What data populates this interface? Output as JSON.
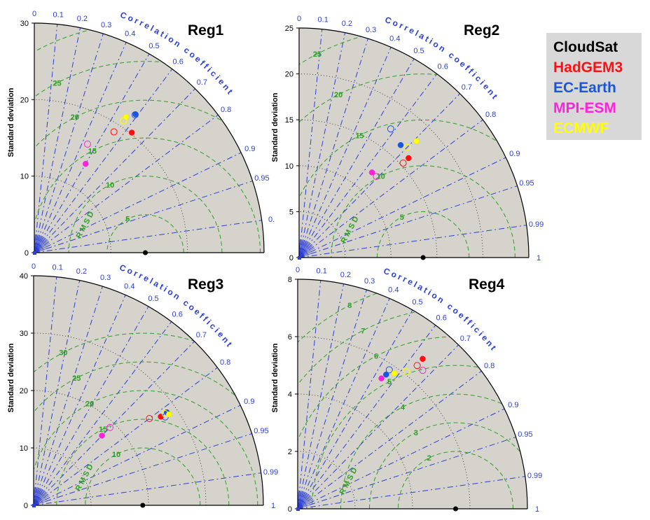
{
  "colors": {
    "fill": "#d6d2cc",
    "corr": "#2b3fd6",
    "rmsd": "#2aa024",
    "std_grid": "#333333",
    "title": "#000000",
    "reference": "#000000"
  },
  "legend": [
    {
      "name": "CloudSat",
      "color": "#000000"
    },
    {
      "name": "HadGEM3",
      "color": "#ff1010"
    },
    {
      "name": "EC-Earth",
      "color": "#1a55e0"
    },
    {
      "name": "MPI-ESM",
      "color": "#ff22dd"
    },
    {
      "name": "ECMWF",
      "color": "#ffff00"
    }
  ],
  "chart_data": [
    {
      "type": "scatter",
      "subtype": "taylor",
      "title": "Reg1",
      "ylabel": "Standard deviation",
      "corr_label": "Correlation coefficient",
      "rmsd_label": "RMSD",
      "std_max": 30,
      "std_ticks": [
        0,
        10,
        20,
        30
      ],
      "std_rings": [
        10,
        20,
        30
      ],
      "corr_ticks": [
        "0",
        "0.1",
        "0.2",
        "0.3",
        "0.4",
        "0.5",
        "0.6",
        "0.7",
        "0.8",
        "0.9",
        "0.95",
        "0."
      ],
      "rmsd_levels": [
        5,
        10,
        15,
        20,
        25,
        30
      ],
      "reference_std": 14.5,
      "points": [
        {
          "model": "HadGEM3",
          "kind": "filled",
          "std": 20.2,
          "corr": 0.63
        },
        {
          "model": "HadGEM3",
          "kind": "open",
          "std": 18.9,
          "corr": 0.55
        },
        {
          "model": "EC-Earth",
          "kind": "filled",
          "std": 22.4,
          "corr": 0.59
        },
        {
          "model": "EC-Earth",
          "kind": "open",
          "std": 22.3,
          "corr": 0.59
        },
        {
          "model": "MPI-ESM",
          "kind": "filled",
          "std": 13.4,
          "corr": 0.5
        },
        {
          "model": "MPI-ESM",
          "kind": "open",
          "std": 15.8,
          "corr": 0.44
        },
        {
          "model": "ECMWF",
          "kind": "filled",
          "std": 21.4,
          "corr": 0.56
        },
        {
          "model": "ECMWF",
          "kind": "open",
          "std": 20.8,
          "corr": 0.56
        }
      ]
    },
    {
      "type": "scatter",
      "subtype": "taylor",
      "title": "Reg2",
      "ylabel": "Standard deviation",
      "corr_label": "Correlation coefficient",
      "rmsd_label": "RMSD",
      "std_max": 25,
      "std_ticks": [
        0,
        5,
        10,
        15,
        20,
        25
      ],
      "std_rings": [
        5,
        10,
        15,
        20,
        25
      ],
      "corr_ticks": [
        "0",
        "0.1",
        "0.2",
        "0.3",
        "0.4",
        "0.5",
        "0.6",
        "0.7",
        "0.8",
        "0.9",
        "0.95",
        "0.99",
        "1"
      ],
      "rmsd_levels": [
        5,
        10,
        15,
        20,
        25
      ],
      "reference_std": 13.5,
      "points": [
        {
          "model": "HadGEM3",
          "kind": "filled",
          "std": 16.1,
          "corr": 0.74
        },
        {
          "model": "HadGEM3",
          "kind": "open",
          "std": 15.3,
          "corr": 0.74
        },
        {
          "model": "EC-Earth",
          "kind": "filled",
          "std": 16.5,
          "corr": 0.67
        },
        {
          "model": "EC-Earth",
          "kind": "open",
          "std": 17.2,
          "corr": 0.58
        },
        {
          "model": "MPI-ESM",
          "kind": "filled",
          "std": 12.2,
          "corr": 0.65
        },
        {
          "model": "MPI-ESM",
          "kind": "open",
          "std": 12.2,
          "corr": 0.69
        },
        {
          "model": "ECMWF",
          "kind": "filled",
          "std": 18.0,
          "corr": 0.71
        },
        {
          "model": "ECMWF",
          "kind": "open",
          "std": 16.8,
          "corr": 0.7
        }
      ]
    },
    {
      "type": "scatter",
      "subtype": "taylor",
      "title": "Reg3",
      "ylabel": "Standard deviation",
      "corr_label": "Correlation coefficient",
      "rmsd_label": "RMSD",
      "std_max": 40,
      "std_ticks": [
        0,
        10,
        20,
        30,
        40
      ],
      "std_rings": [
        10,
        20,
        30,
        40
      ],
      "corr_ticks": [
        "0",
        "0.1",
        "0.2",
        "0.3",
        "0.4",
        "0.5",
        "0.6",
        "0.7",
        "0.8",
        "0.9",
        "0.95",
        "0.99",
        "1"
      ],
      "rmsd_levels": [
        10,
        15,
        20,
        25,
        30
      ],
      "reference_std": 19.0,
      "points": [
        {
          "model": "HadGEM3",
          "kind": "filled",
          "std": 27.0,
          "corr": 0.82
        },
        {
          "model": "HadGEM3",
          "kind": "open",
          "std": 25.2,
          "corr": 0.8
        },
        {
          "model": "EC-Earth",
          "kind": "filled",
          "std": 28.3,
          "corr": 0.82
        },
        {
          "model": "EC-Earth",
          "kind": "open",
          "std": 27.6,
          "corr": 0.83
        },
        {
          "model": "MPI-ESM",
          "kind": "filled",
          "std": 17.0,
          "corr": 0.7
        },
        {
          "model": "MPI-ESM",
          "kind": "open",
          "std": 19.0,
          "corr": 0.7
        },
        {
          "model": "ECMWF",
          "kind": "filled",
          "std": 28.4,
          "corr": 0.83
        },
        {
          "model": "ECMWF",
          "kind": "open",
          "std": 27.9,
          "corr": 0.82
        }
      ]
    },
    {
      "type": "scatter",
      "subtype": "taylor",
      "title": "Reg4",
      "ylabel": "Standard deviation",
      "corr_label": "Correlation coefficient",
      "rmsd_label": "RMSD",
      "std_max": 8,
      "std_ticks": [
        0,
        2,
        4,
        6,
        8
      ],
      "std_rings": [
        2,
        4,
        6,
        8
      ],
      "corr_ticks": [
        "0",
        "0.1",
        "0.2",
        "0.3",
        "0.4",
        "0.5",
        "0.6",
        "0.7",
        "0.8",
        "0.9",
        "0.95",
        "0.99",
        "1"
      ],
      "rmsd_levels": [
        2,
        3,
        4,
        5,
        6,
        7,
        8
      ],
      "reference_std": 5.5,
      "points": [
        {
          "model": "HadGEM3",
          "kind": "filled",
          "std": 6.8,
          "corr": 0.64
        },
        {
          "model": "HadGEM3",
          "kind": "open",
          "std": 6.5,
          "corr": 0.64
        },
        {
          "model": "EC-Earth",
          "kind": "filled",
          "std": 5.6,
          "corr": 0.55
        },
        {
          "model": "EC-Earth",
          "kind": "open",
          "std": 5.8,
          "corr": 0.55
        },
        {
          "model": "MPI-ESM",
          "kind": "filled",
          "std": 5.4,
          "corr": 0.54
        },
        {
          "model": "MPI-ESM",
          "kind": "open",
          "std": 6.5,
          "corr": 0.67
        },
        {
          "model": "ECMWF",
          "kind": "filled",
          "std": 5.8,
          "corr": 0.58
        },
        {
          "model": "ECMWF",
          "kind": "open",
          "std": 6.1,
          "corr": 0.62
        }
      ]
    }
  ]
}
